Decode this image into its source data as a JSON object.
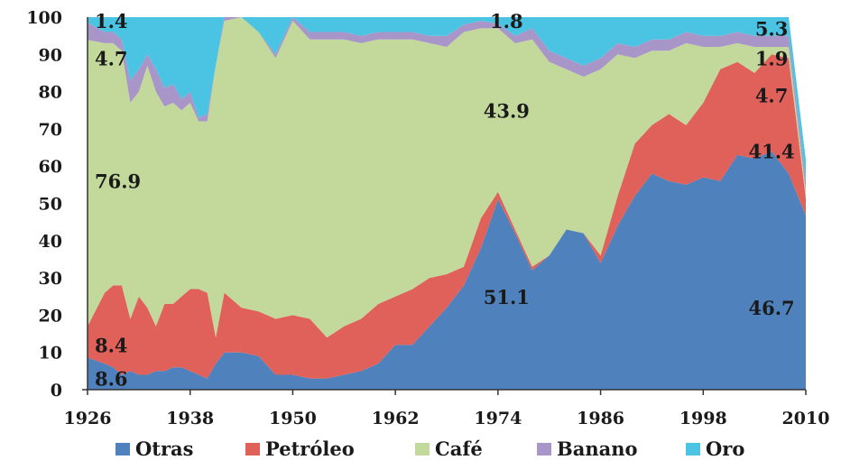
{
  "chart_data": {
    "type": "area",
    "stacked": true,
    "ylim": [
      0,
      100
    ],
    "xlim": [
      1926,
      2010
    ],
    "y_ticks": [
      "0",
      "10",
      "20",
      "30",
      "40",
      "50",
      "60",
      "70",
      "80",
      "90",
      "100"
    ],
    "x_ticks": [
      "1926",
      "1938",
      "1950",
      "1962",
      "1974",
      "1986",
      "1998",
      "2010"
    ],
    "x": [
      1926,
      1928,
      1929,
      1930,
      1931,
      1932,
      1933,
      1934,
      1935,
      1936,
      1937,
      1938,
      1939,
      1940,
      1941,
      1942,
      1944,
      1946,
      1948,
      1950,
      1952,
      1954,
      1956,
      1958,
      1960,
      1962,
      1964,
      1966,
      1968,
      1970,
      1972,
      1974,
      1976,
      1978,
      1980,
      1982,
      1984,
      1986,
      1988,
      1990,
      1992,
      1994,
      1996,
      1998,
      2000,
      2002,
      2004,
      2006,
      2008,
      2010
    ],
    "series": [
      {
        "name": "Otras",
        "color": "#4F81BD",
        "values": [
          8.6,
          7,
          6,
          4,
          5,
          4,
          4,
          5,
          5,
          6,
          6,
          5,
          4,
          3,
          7,
          10,
          10,
          9,
          4,
          4,
          3,
          3,
          4,
          5,
          7,
          12,
          12,
          17,
          22,
          28,
          38,
          51.1,
          42,
          32,
          36,
          43,
          42,
          34,
          44,
          52,
          58,
          56,
          55,
          57,
          56,
          63,
          62,
          64,
          58,
          46.7
        ]
      },
      {
        "name": "Petróleo",
        "color": "#E0605A",
        "values": [
          8.4,
          19,
          22,
          24,
          14,
          21,
          18,
          12,
          18,
          17,
          19,
          22,
          23,
          23,
          7,
          16,
          12,
          12,
          15,
          16,
          16,
          11,
          13,
          14,
          16,
          13,
          15,
          13,
          9,
          5,
          8,
          2,
          1,
          1,
          0,
          0,
          0,
          2,
          8,
          14,
          13,
          18,
          16,
          20,
          30,
          25,
          23,
          26,
          31,
          4.7
        ]
      },
      {
        "name": "Café",
        "color": "#C3D89B",
        "values": [
          76.9,
          67,
          65,
          63,
          58,
          55,
          65,
          63,
          53,
          54,
          50,
          50,
          45,
          46,
          73,
          73,
          78,
          75,
          70,
          79,
          75,
          80,
          77,
          74,
          71,
          69,
          67,
          63,
          61,
          63,
          51,
          43.9,
          50,
          61,
          52,
          43,
          42,
          50,
          38,
          23,
          20,
          17,
          22,
          15,
          6,
          5,
          7,
          2,
          3,
          1.9
        ]
      },
      {
        "name": "Banano",
        "color": "#A996C8",
        "values": [
          4.7,
          3,
          3,
          3,
          6,
          6,
          3,
          6,
          5,
          5,
          3,
          3,
          1,
          2,
          0,
          1,
          0,
          0,
          1,
          1,
          2,
          2,
          2,
          2,
          2,
          2,
          2,
          2,
          3,
          2,
          2,
          1.2,
          2,
          3,
          3,
          3,
          3,
          3,
          3,
          3,
          3,
          3,
          3,
          3,
          3,
          3,
          3,
          3,
          3,
          3
        ]
      },
      {
        "name": "Oro",
        "color": "#4BC3E2",
        "values": [
          1.4,
          4,
          4,
          6,
          17,
          14,
          10,
          14,
          19,
          18,
          22,
          20,
          27,
          26,
          13,
          0,
          0,
          4,
          10,
          0,
          4,
          4,
          4,
          5,
          4,
          4,
          4,
          5,
          5,
          2,
          1,
          1.8,
          5,
          3,
          9,
          11,
          13,
          11,
          7,
          8,
          6,
          6,
          4,
          5,
          5,
          4,
          5,
          5,
          5,
          5.3
        ]
      }
    ],
    "data_labels": [
      {
        "text": "8.6",
        "series": "Otras",
        "x": 1926,
        "y": 3
      },
      {
        "text": "8.4",
        "series": "Petróleo",
        "x": 1926,
        "y": 12
      },
      {
        "text": "76.9",
        "series": "Café",
        "x": 1926,
        "y": 56
      },
      {
        "text": "4.7",
        "series": "Banano",
        "x": 1926,
        "y": 89
      },
      {
        "text": "1.4",
        "series": "Oro",
        "x": 1926,
        "y": 99
      },
      {
        "text": "51.1",
        "series": "Otras",
        "x": 1975,
        "y": 25
      },
      {
        "text": "43.9",
        "series": "Café",
        "x": 1975,
        "y": 75
      },
      {
        "text": "1.8",
        "series": "Oro",
        "x": 1975,
        "y": 99
      },
      {
        "text": "46.7",
        "series": "Otras",
        "x": 2006,
        "y": 22
      },
      {
        "text": "41.4",
        "series": "Otras",
        "x": 2006,
        "y": 64
      },
      {
        "text": "4.7",
        "series": "Petróleo",
        "x": 2006,
        "y": 79
      },
      {
        "text": "1.9",
        "series": "Café",
        "x": 2006,
        "y": 89
      },
      {
        "text": "5.3",
        "series": "Oro",
        "x": 2006,
        "y": 97
      }
    ],
    "legend_position": "bottom",
    "grid": false
  }
}
